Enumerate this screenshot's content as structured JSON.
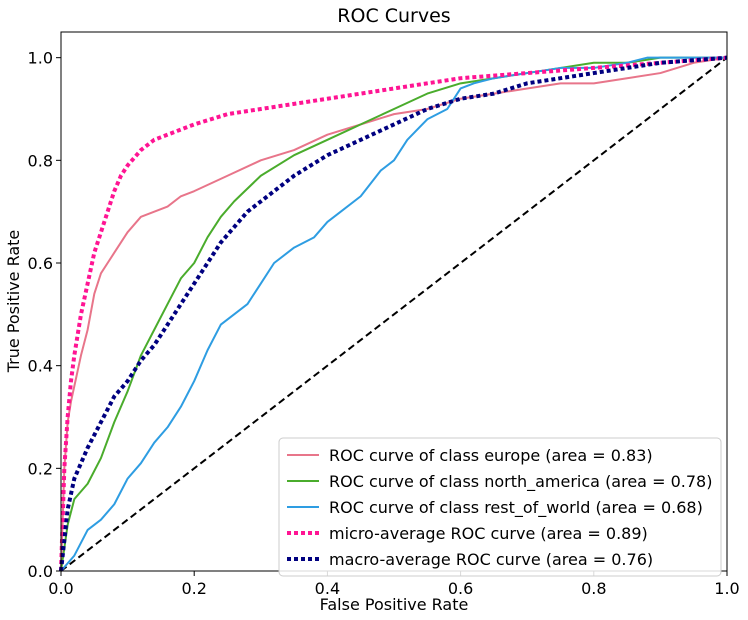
{
  "chart_data": {
    "type": "line",
    "title": "ROC Curves",
    "xlabel": "False Positive Rate",
    "ylabel": "True Positive Rate",
    "xlim": [
      0.0,
      1.0
    ],
    "ylim": [
      0.0,
      1.05
    ],
    "xticks": [
      "0.0",
      "0.2",
      "0.4",
      "0.6",
      "0.8",
      "1.0"
    ],
    "yticks": [
      "0.0",
      "0.2",
      "0.4",
      "0.6",
      "0.8",
      "1.0"
    ],
    "grid": false,
    "legend_position": "lower-right",
    "series": [
      {
        "name": "ROC curve of class europe (area = 0.83)",
        "color": "#e8758a",
        "style": "solid",
        "x": [
          0,
          0.005,
          0.01,
          0.015,
          0.02,
          0.03,
          0.04,
          0.05,
          0.06,
          0.07,
          0.08,
          0.1,
          0.12,
          0.14,
          0.16,
          0.18,
          0.2,
          0.25,
          0.3,
          0.35,
          0.4,
          0.45,
          0.5,
          0.55,
          0.6,
          0.65,
          0.7,
          0.75,
          0.8,
          0.85,
          0.9,
          0.95,
          1.0
        ],
        "y": [
          0,
          0.2,
          0.29,
          0.33,
          0.36,
          0.42,
          0.47,
          0.54,
          0.58,
          0.6,
          0.62,
          0.66,
          0.69,
          0.7,
          0.71,
          0.73,
          0.74,
          0.77,
          0.8,
          0.82,
          0.85,
          0.87,
          0.89,
          0.9,
          0.92,
          0.93,
          0.94,
          0.95,
          0.95,
          0.96,
          0.97,
          0.99,
          1.0
        ]
      },
      {
        "name": "ROC curve of class north_america (area = 0.78)",
        "color": "#4aac2c",
        "style": "solid",
        "x": [
          0,
          0.01,
          0.02,
          0.04,
          0.06,
          0.08,
          0.1,
          0.12,
          0.14,
          0.16,
          0.18,
          0.2,
          0.22,
          0.24,
          0.26,
          0.3,
          0.35,
          0.4,
          0.45,
          0.5,
          0.55,
          0.6,
          0.65,
          0.7,
          0.75,
          0.8,
          0.85,
          0.9,
          0.95,
          1.0
        ],
        "y": [
          0,
          0.09,
          0.14,
          0.17,
          0.22,
          0.29,
          0.35,
          0.42,
          0.47,
          0.52,
          0.57,
          0.6,
          0.65,
          0.69,
          0.72,
          0.77,
          0.81,
          0.84,
          0.87,
          0.9,
          0.93,
          0.95,
          0.96,
          0.97,
          0.98,
          0.99,
          0.99,
          1.0,
          1.0,
          1.0
        ]
      },
      {
        "name": "ROC curve of class rest_of_world (area = 0.68)",
        "color": "#2e9de2",
        "style": "solid",
        "x": [
          0,
          0.02,
          0.04,
          0.06,
          0.08,
          0.1,
          0.12,
          0.14,
          0.16,
          0.18,
          0.2,
          0.22,
          0.24,
          0.26,
          0.28,
          0.3,
          0.32,
          0.35,
          0.38,
          0.4,
          0.42,
          0.45,
          0.48,
          0.5,
          0.52,
          0.55,
          0.58,
          0.6,
          0.62,
          0.65,
          0.7,
          0.75,
          0.8,
          0.85,
          0.88,
          0.9,
          0.95,
          1.0
        ],
        "y": [
          0,
          0.03,
          0.08,
          0.1,
          0.13,
          0.18,
          0.21,
          0.25,
          0.28,
          0.32,
          0.37,
          0.43,
          0.48,
          0.5,
          0.52,
          0.56,
          0.6,
          0.63,
          0.65,
          0.68,
          0.7,
          0.73,
          0.78,
          0.8,
          0.84,
          0.88,
          0.9,
          0.94,
          0.95,
          0.96,
          0.97,
          0.98,
          0.98,
          0.99,
          1.0,
          1.0,
          1.0,
          1.0
        ]
      },
      {
        "name": "micro-average ROC curve (area = 0.89)",
        "color": "#ff1493",
        "style": "dotted",
        "x": [
          0,
          0.005,
          0.01,
          0.015,
          0.02,
          0.03,
          0.04,
          0.05,
          0.06,
          0.07,
          0.08,
          0.09,
          0.1,
          0.12,
          0.14,
          0.16,
          0.18,
          0.2,
          0.25,
          0.3,
          0.35,
          0.4,
          0.45,
          0.5,
          0.55,
          0.6,
          0.65,
          0.7,
          0.75,
          0.8,
          0.85,
          0.9,
          0.95,
          1.0
        ],
        "y": [
          0,
          0.2,
          0.3,
          0.37,
          0.42,
          0.5,
          0.56,
          0.62,
          0.66,
          0.7,
          0.74,
          0.77,
          0.79,
          0.82,
          0.84,
          0.85,
          0.86,
          0.87,
          0.89,
          0.9,
          0.91,
          0.92,
          0.93,
          0.94,
          0.95,
          0.96,
          0.965,
          0.97,
          0.975,
          0.98,
          0.985,
          0.99,
          0.995,
          1.0
        ]
      },
      {
        "name": "macro-average ROC curve (area = 0.76)",
        "color": "#000080",
        "style": "dotted",
        "x": [
          0,
          0.01,
          0.02,
          0.04,
          0.06,
          0.08,
          0.1,
          0.12,
          0.14,
          0.16,
          0.18,
          0.2,
          0.22,
          0.24,
          0.26,
          0.28,
          0.3,
          0.35,
          0.4,
          0.45,
          0.5,
          0.55,
          0.6,
          0.65,
          0.7,
          0.75,
          0.8,
          0.85,
          0.9,
          0.95,
          1.0
        ],
        "y": [
          0,
          0.12,
          0.18,
          0.24,
          0.29,
          0.34,
          0.37,
          0.41,
          0.44,
          0.48,
          0.52,
          0.56,
          0.6,
          0.64,
          0.67,
          0.7,
          0.72,
          0.77,
          0.81,
          0.84,
          0.87,
          0.9,
          0.92,
          0.93,
          0.95,
          0.96,
          0.97,
          0.98,
          0.99,
          0.995,
          1.0
        ]
      }
    ],
    "reference_line": {
      "x": [
        0,
        1
      ],
      "y": [
        0,
        1
      ],
      "color": "#000000",
      "style": "dashed"
    }
  }
}
